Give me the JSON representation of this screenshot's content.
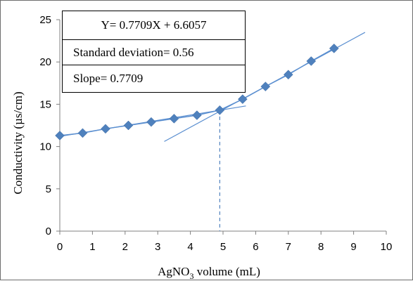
{
  "chart_data": {
    "type": "scatter",
    "xlabel": {
      "main": "AgNO",
      "sub": "3",
      "rest": " volume  (mL)"
    },
    "ylabel": "Conductivity  (µs/cm)",
    "xlim": [
      0,
      10
    ],
    "ylim": [
      0,
      25
    ],
    "xticks": [
      "0",
      "1",
      "2",
      "3",
      "4",
      "5",
      "6",
      "7",
      "8",
      "9",
      "10"
    ],
    "yticks": [
      "0",
      "5",
      "10",
      "15",
      "20",
      "25"
    ],
    "grid": false,
    "marker_color": "#4f81bd",
    "line_color": "#5b8fd0",
    "series": [
      {
        "x": [
          0,
          0.7,
          1.4,
          2.1,
          2.8,
          3.5,
          4.2,
          4.9,
          5.6,
          6.3,
          7.0,
          7.7,
          8.4
        ],
        "y": [
          11.3,
          11.6,
          12.1,
          12.5,
          12.9,
          13.3,
          13.7,
          14.3,
          15.6,
          17.1,
          18.5,
          20.1,
          21.6
        ]
      }
    ],
    "trendlines": [
      {
        "name": "fit-before",
        "x1": 0,
        "y1": 11.2,
        "x2": 5.7,
        "y2": 14.8
      },
      {
        "name": "fit-after",
        "x1": 3.2,
        "y1": 10.6,
        "x2": 9.35,
        "y2": 23.5
      }
    ],
    "equivalence_point": {
      "x": 4.9,
      "y": 14.3
    },
    "annotations": {
      "equation": "Y= 0.7709X + 6.6057",
      "std_dev": "Standard deviation= 0.56",
      "slope": "Slope= 0.7709"
    }
  }
}
